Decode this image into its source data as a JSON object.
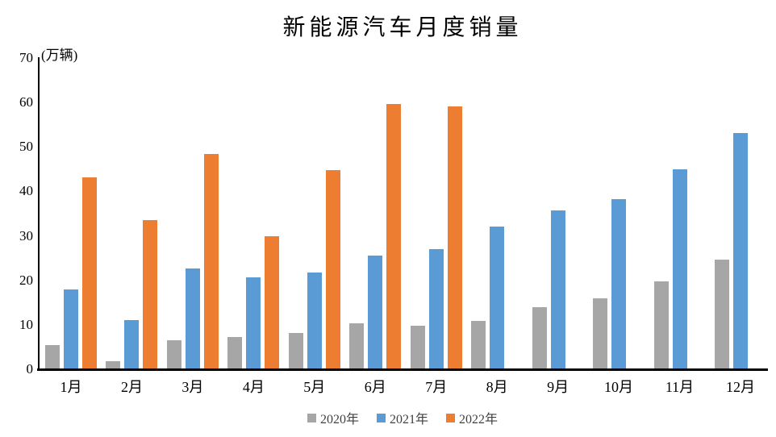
{
  "chart_data": {
    "type": "bar",
    "title": "新能源汽车月度销量",
    "unit_label": "(万辆)",
    "categories": [
      "1月",
      "2月",
      "3月",
      "4月",
      "5月",
      "6月",
      "7月",
      "8月",
      "9月",
      "10月",
      "11月",
      "12月"
    ],
    "series": [
      {
        "name": "2020年",
        "color": "#a6a6a6",
        "values": [
          5.4,
          1.8,
          6.5,
          7.3,
          8.2,
          10.4,
          9.8,
          10.8,
          14.0,
          16.0,
          19.8,
          24.7
        ]
      },
      {
        "name": "2021年",
        "color": "#5b9bd5",
        "values": [
          18.0,
          11.1,
          22.6,
          20.6,
          21.7,
          25.6,
          27.1,
          32.1,
          35.7,
          38.3,
          45.0,
          53.1
        ]
      },
      {
        "name": "2022年",
        "color": "#ed7d31",
        "values": [
          43.2,
          33.5,
          48.4,
          30.0,
          44.8,
          59.6,
          59.2,
          null,
          null,
          null,
          null,
          null
        ]
      }
    ],
    "ylim": [
      0,
      70
    ],
    "yticks": [
      0,
      10,
      20,
      30,
      40,
      50,
      60,
      70
    ],
    "xlabel": "",
    "ylabel": "(万辆)",
    "grid": false,
    "legend_position": "bottom",
    "axis_color": "#000000",
    "background_color": "#ffffff"
  }
}
